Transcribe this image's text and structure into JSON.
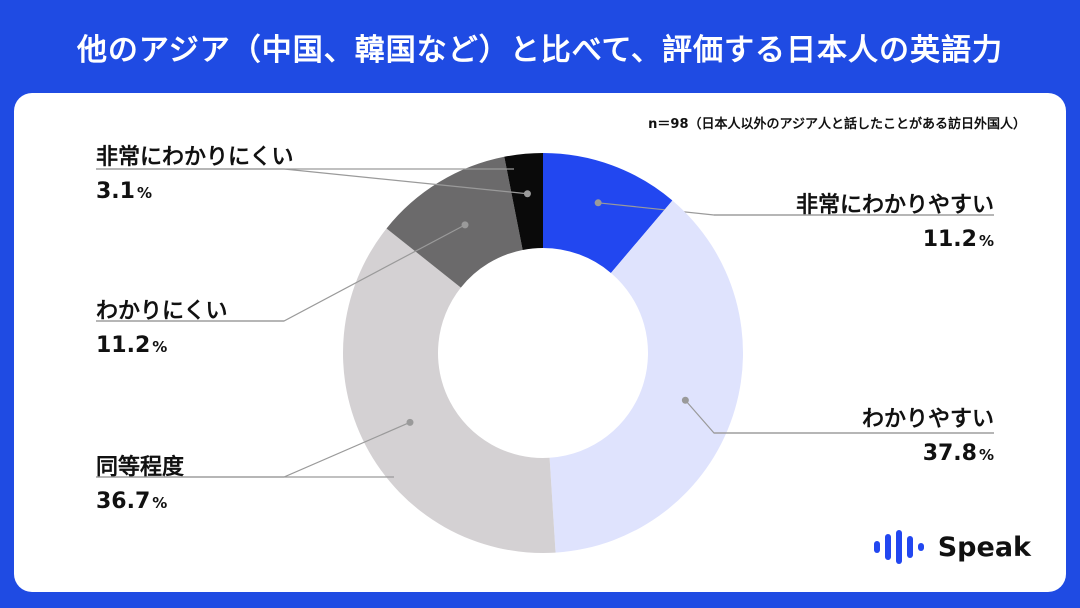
{
  "title": "他のアジア（中国、韓国など）と比べて、評価する日本人の英語力",
  "note": "n＝98（日本人以外のアジア人と話したことがある訪日外国人）",
  "brand": "Speak",
  "chart_data": {
    "type": "pie",
    "donut": true,
    "unit": "%",
    "categories": [
      "非常にわかりやすい",
      "わかりやすい",
      "同等程度",
      "わかりにくい",
      "非常にわかりにくい"
    ],
    "values": [
      11.2,
      37.8,
      36.7,
      11.2,
      3.1
    ],
    "value_labels": [
      "11.2",
      "37.8",
      "36.7",
      "11.2",
      "3.1"
    ],
    "colors": [
      "#2247f0",
      "#dfe3fd",
      "#d4d1d3",
      "#6b6a6b",
      "#0a0a0a"
    ],
    "label_side": [
      "right",
      "right",
      "left",
      "left",
      "left"
    ]
  }
}
